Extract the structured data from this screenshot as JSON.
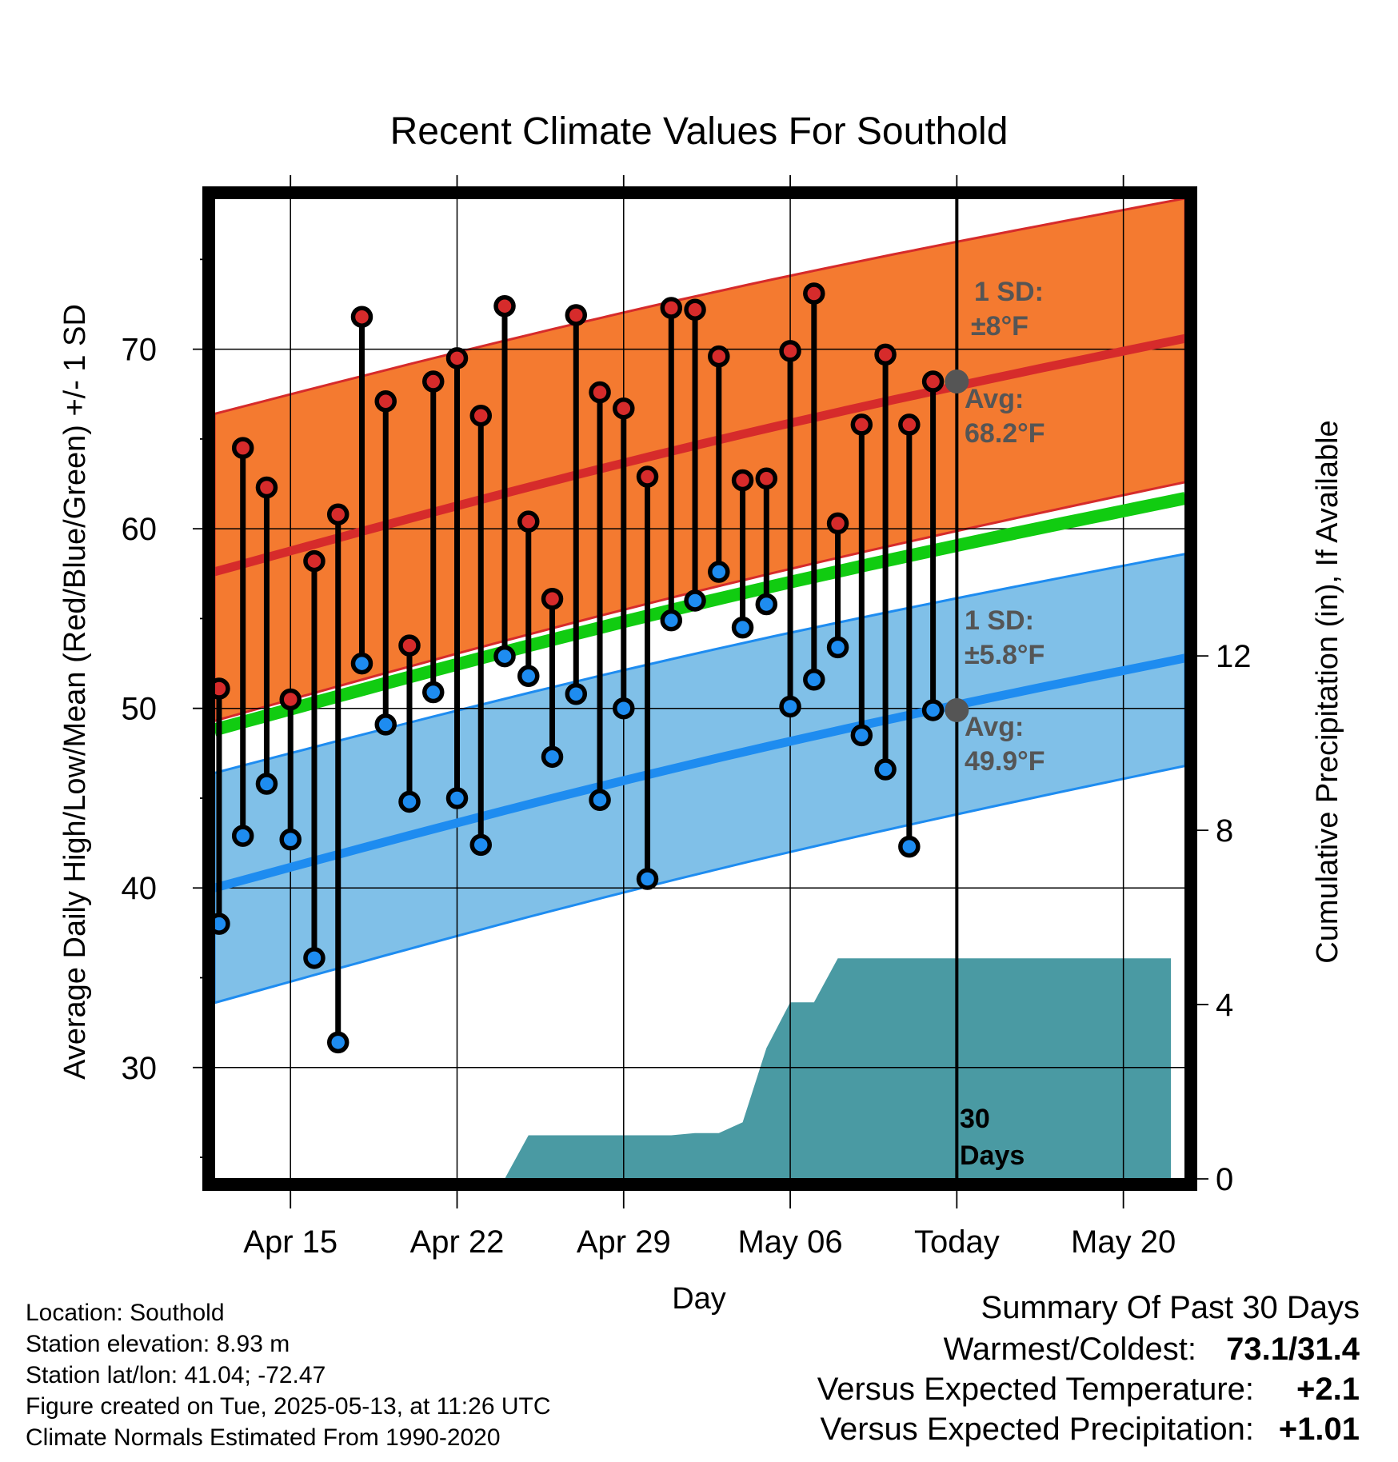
{
  "chart_data": {
    "type": "line",
    "title": "Recent Climate Values For Southold",
    "xlabel": "Day",
    "ylabel_left": "Average Daily High/Low/Mean (Red/Blue/Green) +/- 1 SD",
    "ylabel_right": "Cumulative Precipitation (in), If Available",
    "x_ticks": [
      "Apr 15",
      "Apr 22",
      "Apr 29",
      "May 06",
      "Today",
      "May 20"
    ],
    "x_tick_days": [
      4,
      11,
      18,
      25,
      32,
      39
    ],
    "xlim_days": [
      0.8,
      41.6
    ],
    "ylim_left": [
      23.8,
      78.4
    ],
    "y_ticks_left": [
      30,
      40,
      50,
      60,
      70
    ],
    "ylim_right": [
      0,
      22.5
    ],
    "y_ticks_right": [
      0,
      4,
      8,
      12
    ],
    "grid": true,
    "today_day": 32,
    "today_label": "30 Days",
    "avg_high": {
      "x": [
        0.8,
        41.6
      ],
      "y": [
        57.6,
        70.6
      ]
    },
    "avg_high_band": {
      "upper": [
        66.4,
        78.4
      ],
      "lower": [
        49.3,
        62.6
      ]
    },
    "avg_low": {
      "x": [
        0.8,
        41.6
      ],
      "y": [
        40.0,
        52.8
      ]
    },
    "avg_low_band": {
      "upper": [
        46.4,
        58.6
      ],
      "lower": [
        33.6,
        46.8
      ]
    },
    "avg_mean": {
      "x": [
        0.8,
        41.6
      ],
      "y": [
        48.8,
        61.7
      ]
    },
    "daily": {
      "day": [
        1,
        2,
        3,
        4,
        5,
        6,
        7,
        8,
        9,
        10,
        11,
        12,
        13,
        14,
        15,
        16,
        17,
        18,
        19,
        20,
        21,
        22,
        23,
        24,
        25,
        26,
        27,
        28,
        29,
        30,
        31
      ],
      "high": [
        51.1,
        64.5,
        62.3,
        50.5,
        58.2,
        60.8,
        71.8,
        67.1,
        53.5,
        68.2,
        69.5,
        66.3,
        72.4,
        60.4,
        56.1,
        71.9,
        67.6,
        66.7,
        62.9,
        72.3,
        72.2,
        69.6,
        62.7,
        62.8,
        69.9,
        73.1,
        60.3,
        65.8,
        69.7,
        65.8,
        68.2
      ],
      "low": [
        38.0,
        42.9,
        45.8,
        42.7,
        36.1,
        31.4,
        52.5,
        49.1,
        44.8,
        50.9,
        45.0,
        42.4,
        52.9,
        51.8,
        47.3,
        50.8,
        44.9,
        50.0,
        40.5,
        54.9,
        56.0,
        57.6,
        54.5,
        55.8,
        50.1,
        51.6,
        53.4,
        48.5,
        46.6,
        42.3,
        49.9
      ]
    },
    "markers": {
      "today_high_avg": 68.2,
      "today_low_avg": 49.9
    },
    "precip": {
      "day": [
        1,
        13,
        14,
        15,
        16,
        17,
        18,
        19,
        20,
        21,
        22,
        23,
        24,
        25,
        26,
        27,
        28,
        29,
        30,
        31,
        32,
        33,
        34,
        35,
        36,
        37,
        38,
        39,
        40,
        41
      ],
      "cum_in": [
        0,
        0,
        1.0,
        1.0,
        1.0,
        1.0,
        1.0,
        1.0,
        1.0,
        1.05,
        1.05,
        1.3,
        3.0,
        4.05,
        4.05,
        5.06,
        5.06,
        5.06,
        5.06,
        5.06,
        5.06,
        5.06,
        5.06,
        5.06,
        5.06,
        5.06,
        5.06,
        5.06,
        5.06,
        5.06
      ]
    },
    "colors": {
      "high_band": "#f47a30",
      "high_line": "#d62b2b",
      "low_band": "#80c0e8",
      "low_line": "#1e8cf0",
      "mean_line": "#11cc11",
      "precip": "#4a9aa3",
      "high_dot": "#d62b2b",
      "low_dot": "#1e8cf0",
      "marker": "#555555",
      "warm_delta": "#d62b2b",
      "precip_delta": "#11bb11"
    }
  },
  "annotations": {
    "high_sd_line1": "1 SD:",
    "high_sd_line2": "±8°F",
    "high_avg_line1": "Avg:",
    "high_avg_line2": "68.2°F",
    "low_sd_line1": "1 SD:",
    "low_sd_line2": "±5.8°F",
    "low_avg_line1": "Avg:",
    "low_avg_line2": "49.9°F",
    "days_line1": "30",
    "days_line2": "Days"
  },
  "meta": {
    "location": "Location: Southold",
    "elevation": "Station elevation: 8.93 m",
    "latlon": "Station lat/lon: 41.04; -72.47",
    "created": "Figure created on Tue, 2025-05-13, at 11:26 UTC",
    "normals": "Climate Normals Estimated From 1990-2020"
  },
  "summary": {
    "heading": "Summary Of Past 30 Days",
    "warmest_label": "Warmest/Coldest:",
    "warmest_value": "73.1/31.4",
    "temp_label": "Versus Expected Temperature:",
    "temp_value": "+2.1",
    "precip_label": "Versus Expected Precipitation:",
    "precip_value": "+1.01"
  }
}
